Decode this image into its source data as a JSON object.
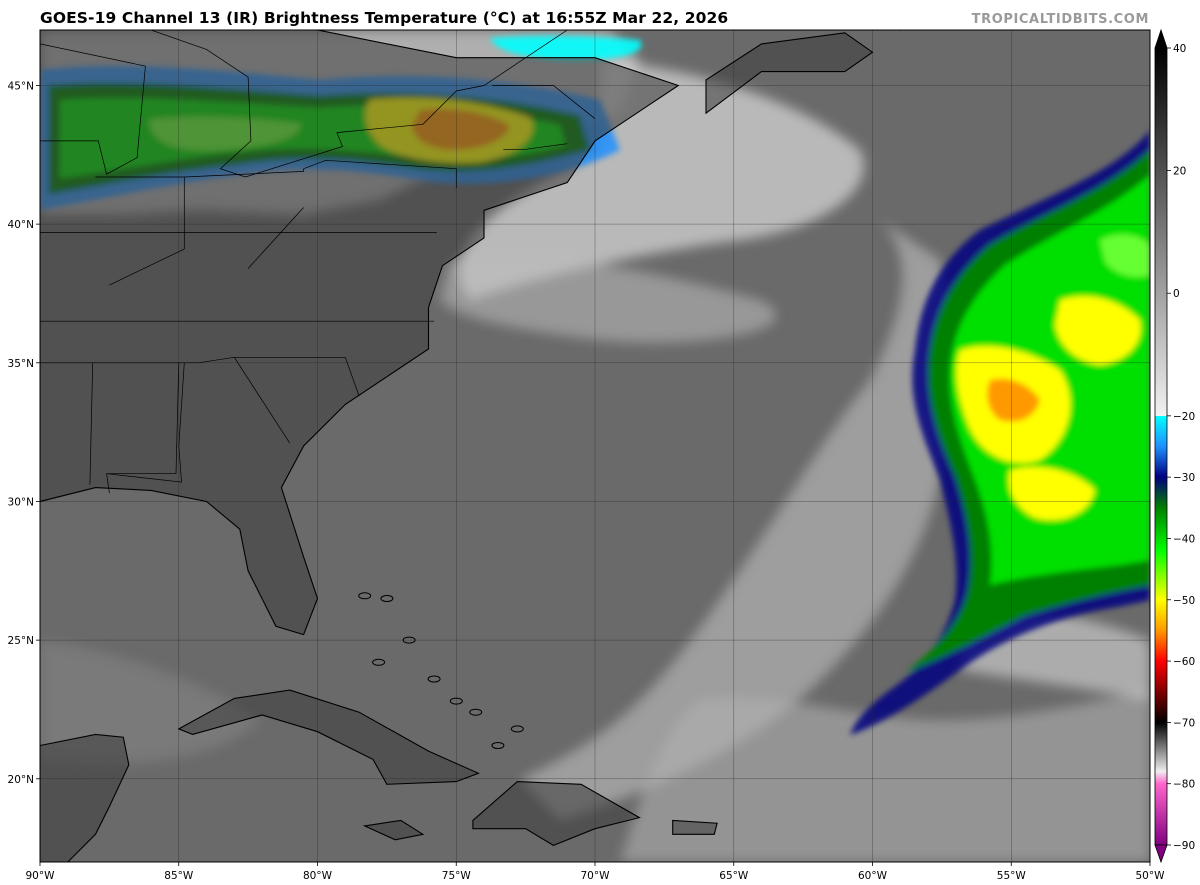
{
  "title": "GOES-19 Channel 13 (IR) Brightness Temperature (°C) at 16:55Z Mar 22, 2026",
  "credit": "TROPICALTIDBITS.COM",
  "map": {
    "lon_range": [
      -90,
      -50
    ],
    "lat_range": [
      17,
      47
    ],
    "lon_ticks": [
      {
        "value": -90,
        "label": "90°W"
      },
      {
        "value": -85,
        "label": "85°W"
      },
      {
        "value": -80,
        "label": "80°W"
      },
      {
        "value": -75,
        "label": "75°W"
      },
      {
        "value": -70,
        "label": "70°W"
      },
      {
        "value": -65,
        "label": "65°W"
      },
      {
        "value": -60,
        "label": "60°W"
      },
      {
        "value": -55,
        "label": "55°W"
      },
      {
        "value": -50,
        "label": "50°W"
      }
    ],
    "lat_ticks": [
      {
        "value": 45,
        "label": "45°N"
      },
      {
        "value": 40,
        "label": "40°N"
      },
      {
        "value": 35,
        "label": "35°N"
      },
      {
        "value": 30,
        "label": "30°N"
      },
      {
        "value": 25,
        "label": "25°N"
      },
      {
        "value": 20,
        "label": "20°N"
      }
    ],
    "colors": {
      "land": "#3c3c3c",
      "ocean": "#6a6a6a",
      "gridline": "#222222",
      "coastline": "#000000"
    }
  },
  "colorbar": {
    "range": [
      -90,
      40
    ],
    "ticks": [
      {
        "value": 40,
        "label": "40"
      },
      {
        "value": 20,
        "label": "20"
      },
      {
        "value": 0,
        "label": "0"
      },
      {
        "value": -20,
        "label": "−20"
      },
      {
        "value": -30,
        "label": "−30"
      },
      {
        "value": -40,
        "label": "−40"
      },
      {
        "value": -50,
        "label": "−50"
      },
      {
        "value": -60,
        "label": "−60"
      },
      {
        "value": -70,
        "label": "−70"
      },
      {
        "value": -80,
        "label": "−80"
      },
      {
        "value": -90,
        "label": "−90"
      }
    ],
    "stops": [
      {
        "t": 40,
        "color": "#000000"
      },
      {
        "t": -20,
        "color": "#f2f2f2"
      },
      {
        "t": -20.01,
        "color": "#00ffff"
      },
      {
        "t": -25,
        "color": "#1e90ff"
      },
      {
        "t": -30,
        "color": "#000080"
      },
      {
        "t": -35,
        "color": "#008000"
      },
      {
        "t": -42,
        "color": "#00ff00"
      },
      {
        "t": -50,
        "color": "#ffff00"
      },
      {
        "t": -55,
        "color": "#ff9900"
      },
      {
        "t": -60,
        "color": "#ff0000"
      },
      {
        "t": -65,
        "color": "#800000"
      },
      {
        "t": -70,
        "color": "#000000"
      },
      {
        "t": -78,
        "color": "#eeeeee"
      },
      {
        "t": -80,
        "color": "#ff66cc"
      },
      {
        "t": -90,
        "color": "#800080"
      }
    ]
  }
}
